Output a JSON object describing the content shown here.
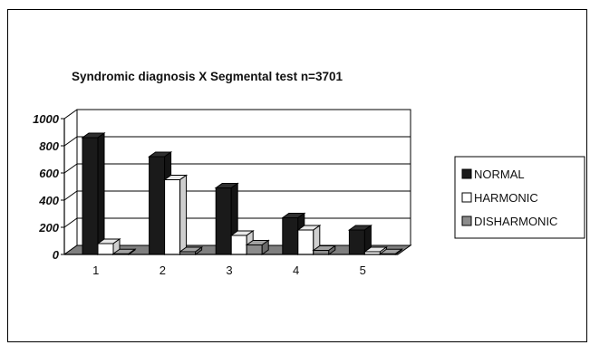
{
  "chart_data": {
    "type": "bar",
    "title": "Syndromic diagnosis X Segmental test   n=3701",
    "categories": [
      "1",
      "2",
      "3",
      "4",
      "5"
    ],
    "series": [
      {
        "name": "NORMAL",
        "values": [
          860,
          720,
          490,
          270,
          180
        ],
        "color": "#1a1a1a"
      },
      {
        "name": "HARMONIC",
        "values": [
          80,
          550,
          140,
          180,
          20
        ],
        "color": "#ffffff"
      },
      {
        "name": "DISHARMONIC",
        "values": [
          5,
          20,
          70,
          30,
          5
        ],
        "color": "#8c8c8c"
      }
    ],
    "ylim": [
      0,
      1000
    ],
    "yticks": [
      "0",
      "200",
      "400",
      "600",
      "800",
      "1000"
    ],
    "grid": true,
    "legend_position": "right",
    "style": "3d-bar"
  }
}
